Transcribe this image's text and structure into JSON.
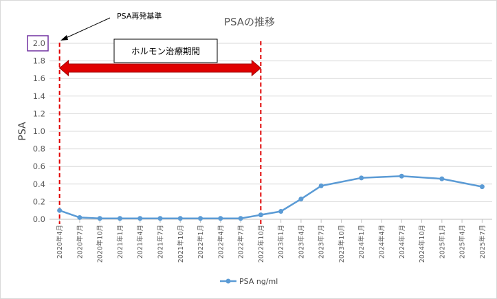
{
  "chart_data": {
    "type": "line",
    "title": "PSAの推移",
    "ylabel": "PSA",
    "xlabel": "",
    "ylim": [
      0,
      2.0
    ],
    "yticks": [
      "0.0",
      "0.2",
      "0.4",
      "0.6",
      "0.8",
      "1.0",
      "1.2",
      "1.4",
      "1.6",
      "1.8",
      "2.0"
    ],
    "categories": [
      "2020年4月",
      "2020年7月",
      "2020年10月",
      "2021年1月",
      "2021年4月",
      "2021年7月",
      "2021年10月",
      "2022年1月",
      "2022年4月",
      "2022年7月",
      "2022年10月",
      "2023年1月",
      "2023年4月",
      "2023年7月",
      "2023年10月",
      "2024年1月",
      "2024年4月",
      "2024年7月",
      "2024年10月",
      "2025年1月",
      "2025年4月",
      "2025年7月"
    ],
    "series": [
      {
        "name": "PSA ng/ml",
        "color": "#5B9BD5",
        "points": [
          {
            "x": "2020年4月",
            "y": 0.1
          },
          {
            "x": "2020年7月",
            "y": 0.02
          },
          {
            "x": "2020年10月",
            "y": 0.01
          },
          {
            "x": "2021年1月",
            "y": 0.01
          },
          {
            "x": "2021年4月",
            "y": 0.01
          },
          {
            "x": "2021年7月",
            "y": 0.01
          },
          {
            "x": "2021年10月",
            "y": 0.01
          },
          {
            "x": "2022年1月",
            "y": 0.01
          },
          {
            "x": "2022年4月",
            "y": 0.01
          },
          {
            "x": "2022年7月",
            "y": 0.01
          },
          {
            "x": "2022年10月",
            "y": 0.05
          },
          {
            "x": "2023年1月",
            "y": 0.09
          },
          {
            "x": "2023年4月",
            "y": 0.23
          },
          {
            "x": "2023年7月",
            "y": 0.38
          },
          {
            "x": "2024年1月",
            "y": 0.47
          },
          {
            "x": "2024年7月",
            "y": 0.49
          },
          {
            "x": "2025年1月",
            "y": 0.46
          },
          {
            "x": "2025年7月",
            "y": 0.37
          }
        ]
      }
    ],
    "grid": true,
    "legend": "bottom",
    "annotations": {
      "threshold_label": "PSA再発基準",
      "highlighted_tick": "2.0",
      "period_label": "ホルモン治療期間",
      "period_start": "2020年4月",
      "period_end": "2022年10月",
      "marker_color": "#E00000",
      "box_color": "#7030A0"
    }
  }
}
